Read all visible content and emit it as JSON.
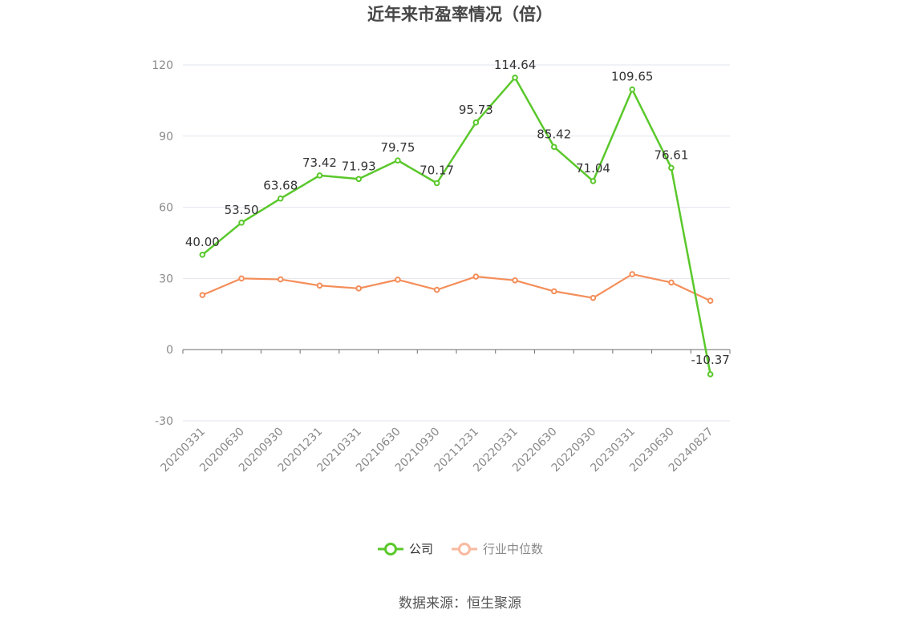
{
  "title": "近年来市盈率情况（倍）",
  "source": "数据来源：恒生聚源",
  "colors": {
    "company": "#5ac82b",
    "industry": "#f48e5a",
    "industry_legend": "#f8b9a0",
    "grid": "#e3e6ee",
    "axis": "#6e6e6e"
  },
  "legend": {
    "company": "公司",
    "industry": "行业中位数"
  },
  "chart_data": {
    "type": "line",
    "title": "近年来市盈率情况（倍）",
    "xlabel": "",
    "ylabel": "",
    "ylim": [
      -30,
      120
    ],
    "yticks": [
      120,
      90,
      60,
      30,
      0,
      -30
    ],
    "grid": true,
    "legend_position": "bottom",
    "categories": [
      "20200331",
      "20200630",
      "20200930",
      "20201231",
      "20210331",
      "20210630",
      "20210930",
      "20211231",
      "20220331",
      "20220630",
      "20220930",
      "20230331",
      "20230630",
      "20240827"
    ],
    "series": [
      {
        "name": "公司",
        "values": [
          40.0,
          53.5,
          63.68,
          73.42,
          71.93,
          79.75,
          70.17,
          95.73,
          114.64,
          85.42,
          71.04,
          109.65,
          76.61,
          -10.37
        ],
        "labels": [
          "40.00",
          "53.50",
          "63.68",
          "73.42",
          "71.93",
          "79.75",
          "70.17",
          "95.73",
          "114.64",
          "85.42",
          "71.04",
          "109.65",
          "76.61",
          "-10.37"
        ]
      },
      {
        "name": "行业中位数",
        "values": [
          23.0,
          30.0,
          29.6,
          27.0,
          25.8,
          29.5,
          25.2,
          30.8,
          29.2,
          24.6,
          21.8,
          31.8,
          28.3,
          20.6
        ]
      }
    ]
  }
}
